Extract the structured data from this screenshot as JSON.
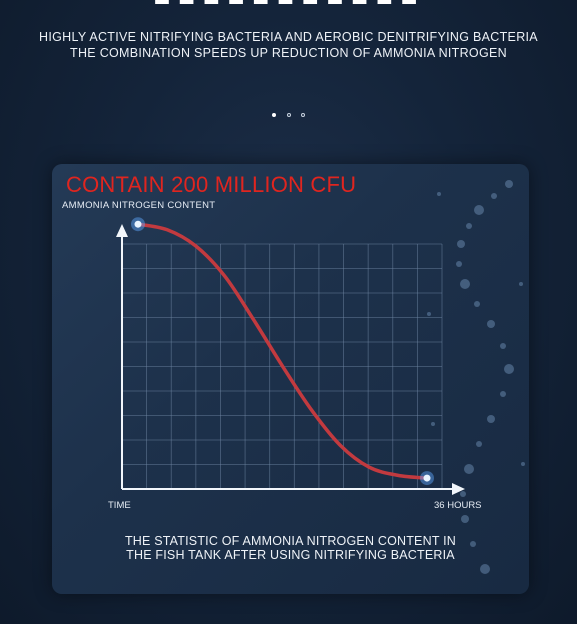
{
  "header": {
    "line1": "HIGHLY ACTIVE NITRIFYING BACTERIA AND AEROBIC DENITRIFYING BACTERIA",
    "line2": "THE COMBINATION SPEEDS UP REDUCTION OF AMMONIA NITROGEN"
  },
  "carousel": {
    "count": 3,
    "active": 0
  },
  "panel": {
    "highlight": "CONTAIN 200 MILLION CFU",
    "caption_line1": "THE STATISTIC OF AMMONIA NITROGEN CONTENT IN",
    "caption_line2": "THE FISH TANK AFTER USING NITRIFYING BACTERIA"
  },
  "chart_data": {
    "type": "line",
    "ylabel": "AMMONIA NITROGEN CONTENT",
    "xlabel_start": "TIME",
    "xlabel_end": "36 HOURS",
    "series": [
      {
        "x": [
          0,
          0.1,
          0.2,
          0.3,
          0.4,
          0.5,
          0.6,
          0.7,
          0.8,
          0.9,
          1.0
        ],
        "y": [
          0.97,
          0.95,
          0.89,
          0.78,
          0.62,
          0.45,
          0.29,
          0.16,
          0.08,
          0.05,
          0.04
        ]
      }
    ],
    "grid": true,
    "colors": {
      "line": "#c23a3f",
      "marker": "#e9f4ff",
      "accent": "#e0251f"
    }
  }
}
